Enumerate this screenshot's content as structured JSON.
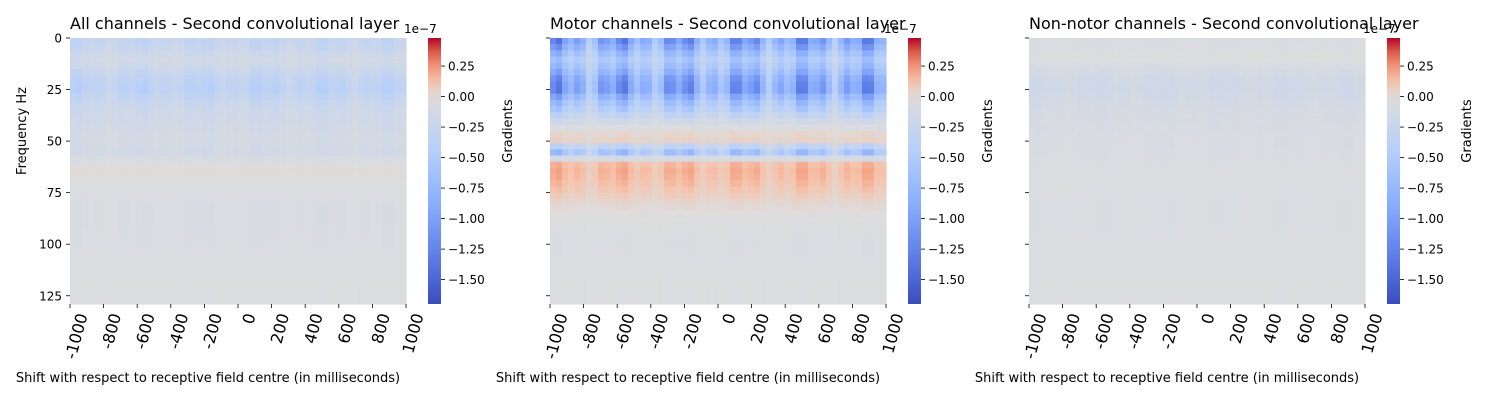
{
  "chart_data": [
    {
      "type": "heatmap",
      "title": "All channels - Second convolutional layer",
      "xlabel": "Shift with respect to receptive field centre (in milliseconds)",
      "ylabel": "Frequency Hz",
      "x_ticks": [
        "-1000",
        "-800",
        "-600",
        "-400",
        "-200",
        "0",
        "200",
        "400",
        "600",
        "800",
        "1000"
      ],
      "y_ticks": [
        "0",
        "25",
        "50",
        "75",
        "100",
        "125"
      ],
      "xlim": [
        -1000,
        1000
      ],
      "ylim": [
        0,
        129
      ],
      "colorbar": {
        "label": "Gradients",
        "ticks": [
          "0.25",
          "0.00",
          "−0.25",
          "−0.50",
          "−0.75",
          "−1.00",
          "−1.25",
          "−1.50"
        ],
        "exponent": "1e−7",
        "range": [
          -1.7,
          0.48
        ],
        "colormap": "coolwarm"
      },
      "mean_gradient_by_frequency": [
        {
          "freq_hz": 0,
          "value": -0.28
        },
        {
          "freq_hz": 5,
          "value": -0.25
        },
        {
          "freq_hz": 10,
          "value": -0.12
        },
        {
          "freq_hz": 15,
          "value": -0.2
        },
        {
          "freq_hz": 20,
          "value": -0.32
        },
        {
          "freq_hz": 25,
          "value": -0.36
        },
        {
          "freq_hz": 30,
          "value": -0.25
        },
        {
          "freq_hz": 35,
          "value": -0.18
        },
        {
          "freq_hz": 40,
          "value": -0.15
        },
        {
          "freq_hz": 45,
          "value": -0.12
        },
        {
          "freq_hz": 50,
          "value": -0.1
        },
        {
          "freq_hz": 55,
          "value": -0.14
        },
        {
          "freq_hz": 60,
          "value": -0.04
        },
        {
          "freq_hz": 65,
          "value": 0.02
        },
        {
          "freq_hz": 70,
          "value": -0.01
        },
        {
          "freq_hz": 75,
          "value": -0.03
        },
        {
          "freq_hz": 80,
          "value": -0.05
        },
        {
          "freq_hz": 90,
          "value": -0.05
        },
        {
          "freq_hz": 100,
          "value": -0.04
        },
        {
          "freq_hz": 110,
          "value": -0.03
        },
        {
          "freq_hz": 120,
          "value": -0.02
        },
        {
          "freq_hz": 129,
          "value": -0.02
        }
      ]
    },
    {
      "type": "heatmap",
      "title": "Motor channels - Second convolutional layer",
      "xlabel": "Shift with respect to receptive field centre (in milliseconds)",
      "ylabel": "",
      "x_ticks": [
        "-1000",
        "-800",
        "-600",
        "-400",
        "-200",
        "0",
        "200",
        "400",
        "600",
        "800",
        "1000"
      ],
      "y_ticks": [
        "0",
        "25",
        "50",
        "75",
        "100",
        "125"
      ],
      "xlim": [
        -1000,
        1000
      ],
      "ylim": [
        0,
        129
      ],
      "colorbar": {
        "label": "Gradients",
        "ticks": [
          "0.25",
          "0.00",
          "−0.25",
          "−0.50",
          "−0.75",
          "−1.00",
          "−1.25",
          "−1.50"
        ],
        "exponent": "1e−7",
        "range": [
          -1.7,
          0.48
        ],
        "colormap": "coolwarm"
      },
      "mean_gradient_by_frequency": [
        {
          "freq_hz": 0,
          "value": -1.0
        },
        {
          "freq_hz": 5,
          "value": -0.75
        },
        {
          "freq_hz": 10,
          "value": -0.45
        },
        {
          "freq_hz": 15,
          "value": -0.6
        },
        {
          "freq_hz": 20,
          "value": -0.85
        },
        {
          "freq_hz": 25,
          "value": -0.95
        },
        {
          "freq_hz": 30,
          "value": -0.6
        },
        {
          "freq_hz": 35,
          "value": -0.4
        },
        {
          "freq_hz": 40,
          "value": -0.15
        },
        {
          "freq_hz": 45,
          "value": 0.02
        },
        {
          "freq_hz": 50,
          "value": 0.05
        },
        {
          "freq_hz": 55,
          "value": -0.6
        },
        {
          "freq_hz": 60,
          "value": 0.12
        },
        {
          "freq_hz": 65,
          "value": 0.15
        },
        {
          "freq_hz": 70,
          "value": 0.12
        },
        {
          "freq_hz": 75,
          "value": 0.08
        },
        {
          "freq_hz": 80,
          "value": 0.03
        },
        {
          "freq_hz": 90,
          "value": -0.02
        },
        {
          "freq_hz": 100,
          "value": -0.04
        },
        {
          "freq_hz": 110,
          "value": -0.03
        },
        {
          "freq_hz": 120,
          "value": -0.02
        },
        {
          "freq_hz": 129,
          "value": -0.02
        }
      ]
    },
    {
      "type": "heatmap",
      "title": "Non-notor channels - Second convolutional layer",
      "xlabel": "Shift with respect to receptive field centre (in milliseconds)",
      "ylabel": "",
      "x_ticks": [
        "-1000",
        "-800",
        "-600",
        "-400",
        "-200",
        "0",
        "200",
        "400",
        "600",
        "800",
        "1000"
      ],
      "y_ticks": [
        "0",
        "25",
        "50",
        "75",
        "100",
        "125"
      ],
      "xlim": [
        -1000,
        1000
      ],
      "ylim": [
        0,
        129
      ],
      "colorbar": {
        "label": "Gradients",
        "ticks": [
          "0.25",
          "0.00",
          "−0.25",
          "−0.50",
          "−0.75",
          "−1.00",
          "−1.25",
          "−1.50"
        ],
        "exponent": "1e−7",
        "range": [
          -1.7,
          0.48
        ],
        "colormap": "coolwarm"
      },
      "mean_gradient_by_frequency": [
        {
          "freq_hz": 0,
          "value": -0.05
        },
        {
          "freq_hz": 5,
          "value": -0.04
        },
        {
          "freq_hz": 10,
          "value": 0.0
        },
        {
          "freq_hz": 15,
          "value": -0.08
        },
        {
          "freq_hz": 20,
          "value": -0.14
        },
        {
          "freq_hz": 25,
          "value": -0.16
        },
        {
          "freq_hz": 30,
          "value": -0.12
        },
        {
          "freq_hz": 35,
          "value": -0.09
        },
        {
          "freq_hz": 40,
          "value": -0.07
        },
        {
          "freq_hz": 45,
          "value": -0.06
        },
        {
          "freq_hz": 50,
          "value": -0.05
        },
        {
          "freq_hz": 55,
          "value": -0.05
        },
        {
          "freq_hz": 60,
          "value": -0.04
        },
        {
          "freq_hz": 65,
          "value": -0.03
        },
        {
          "freq_hz": 70,
          "value": -0.03
        },
        {
          "freq_hz": 80,
          "value": -0.04
        },
        {
          "freq_hz": 90,
          "value": -0.04
        },
        {
          "freq_hz": 100,
          "value": -0.03
        },
        {
          "freq_hz": 110,
          "value": -0.03
        },
        {
          "freq_hz": 120,
          "value": -0.02
        },
        {
          "freq_hz": 129,
          "value": -0.02
        }
      ]
    }
  ]
}
